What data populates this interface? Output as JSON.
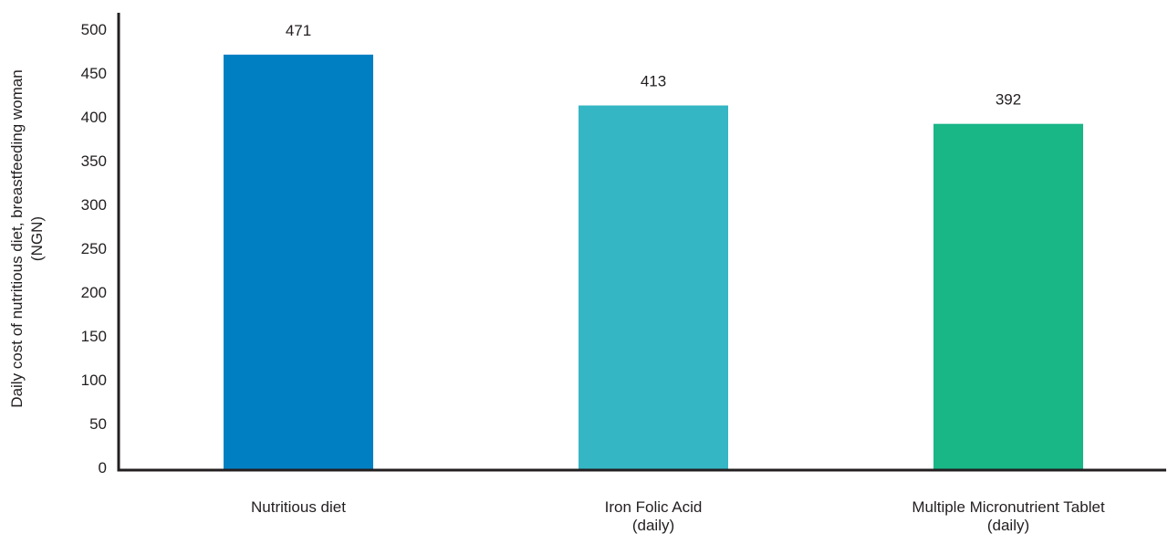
{
  "chart_data": {
    "type": "bar",
    "title": "",
    "xlabel": "",
    "ylabel_lines": [
      "Daily cost of nutritious diet, breastfeeding woman",
      "(NGN)"
    ],
    "categories": [
      [
        "Nutritious diet"
      ],
      [
        "Iron Folic Acid",
        "(daily)"
      ],
      [
        "Multiple Micronutrient Tablet",
        "(daily)"
      ]
    ],
    "values": [
      471,
      413,
      392
    ],
    "value_labels": [
      "471",
      "413",
      "392"
    ],
    "bar_colors": [
      "#0080c3",
      "#35b6c4",
      "#19b686"
    ],
    "ylim": [
      0,
      500
    ],
    "yticks": [
      0,
      50,
      100,
      150,
      200,
      250,
      300,
      350,
      400,
      450,
      500
    ],
    "grid": false,
    "legend": "none"
  }
}
